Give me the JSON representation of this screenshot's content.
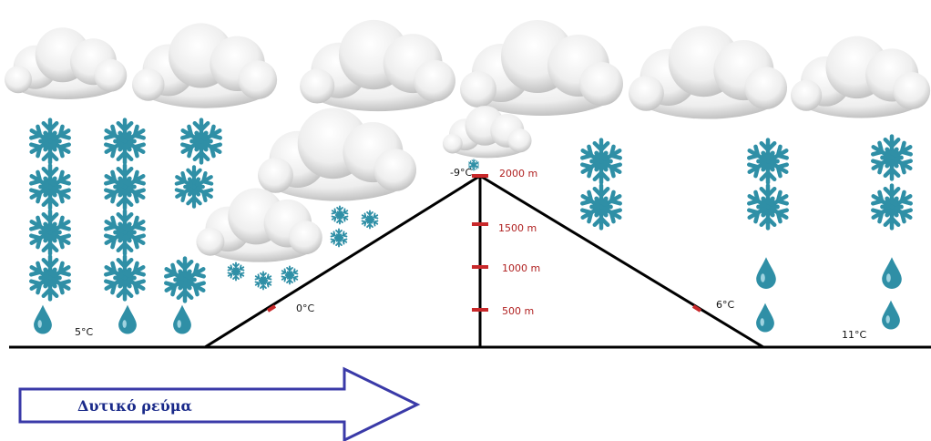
{
  "temperatures": [
    "5°C",
    "0°C",
    "-9°C",
    "6°C",
    "11°C"
  ],
  "altitudes": [
    "2000 m",
    "1500 m",
    "1000 m",
    "500 m"
  ],
  "wind_label": "Δυτικό ρεύμα"
}
